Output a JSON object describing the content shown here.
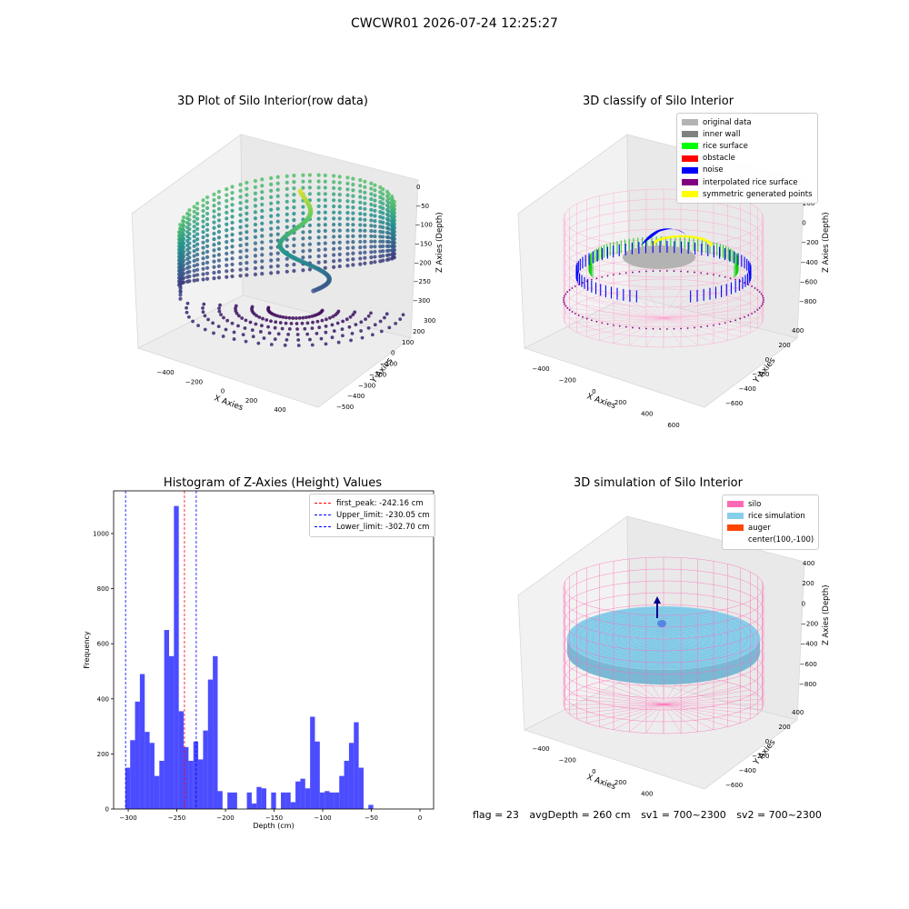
{
  "suptitle": "CWCWR01 2026-07-24 12:25:27",
  "panel_raw": {
    "title": "3D Plot of Silo Interior(row data)",
    "x_label": "X Axies",
    "y_label": "Y Axies",
    "z_label": "Z Axies (Depth)",
    "x_ticks": [
      "−400",
      "−200",
      "0",
      "200",
      "400"
    ],
    "y_ticks": [
      "300",
      "200",
      "100",
      "0",
      "−100",
      "−200",
      "−300",
      "−400",
      "−500"
    ],
    "z_ticks": [
      "0",
      "−50",
      "−100",
      "−150",
      "−200",
      "−250",
      "−300"
    ]
  },
  "panel_classify": {
    "title": "3D classify of Silo Interior",
    "x_label": "X Axies",
    "y_label": "Y Axies",
    "z_label": "Z Axies (Depth)",
    "x_ticks": [
      "−400",
      "−200",
      "0",
      "200",
      "400",
      "600"
    ],
    "y_ticks": [
      "400",
      "200",
      "0",
      "−200",
      "−400",
      "−600"
    ],
    "z_ticks": [
      "200",
      "0",
      "−200",
      "−400",
      "−600",
      "−800"
    ],
    "legend": [
      {
        "label": "original data",
        "color": "#b3b3b3"
      },
      {
        "label": "inner wall",
        "color": "#808080"
      },
      {
        "label": "rice surface",
        "color": "#00ff00"
      },
      {
        "label": "obstacle",
        "color": "#ff0000"
      },
      {
        "label": "noise",
        "color": "#0000ff"
      },
      {
        "label": "interpolated rice surface",
        "color": "#800080"
      },
      {
        "label": "symmetric generated points",
        "color": "#ffff00"
      }
    ]
  },
  "panel_sim": {
    "title": "3D simulation of Silo Interior",
    "x_label": "X Axies",
    "y_label": "Y Axies",
    "z_label": "Z Axies (Depth)",
    "x_ticks": [
      "−400",
      "−200",
      "0",
      "200",
      "400",
      "600"
    ],
    "y_ticks": [
      "400",
      "200",
      "0",
      "−200",
      "−400",
      "−600"
    ],
    "z_ticks": [
      "400",
      "200",
      "0",
      "−200",
      "−400",
      "−600",
      "−800"
    ],
    "legend": [
      {
        "label": "silo",
        "color": "#ff69b4"
      },
      {
        "label": "rice simulation",
        "color": "#87ceeb"
      },
      {
        "label": "auger",
        "color": "#ff4500"
      },
      {
        "label": "center(100,-100)",
        "color": ""
      }
    ]
  },
  "chart_data": {
    "type": "bar",
    "title": "Histogram of Z-Axies (Height) Values",
    "xlabel": "Depth (cm)",
    "ylabel": "Frequency",
    "xlim": [
      -315,
      14
    ],
    "ylim": [
      0,
      1155
    ],
    "x_ticks": [
      -300,
      -250,
      -200,
      -150,
      -100,
      -50,
      0
    ],
    "x_tick_labels": [
      "−300",
      "−250",
      "−200",
      "−150",
      "−100",
      "−50",
      "0"
    ],
    "y_ticks": [
      0,
      200,
      400,
      600,
      800,
      1000
    ],
    "y_tick_labels": [
      "0",
      "200",
      "400",
      "600",
      "800",
      "1000"
    ],
    "bin_width": 5,
    "bins": [
      {
        "x0": -303,
        "v": 150
      },
      {
        "x0": -298,
        "v": 250
      },
      {
        "x0": -293,
        "v": 390
      },
      {
        "x0": -288,
        "v": 490
      },
      {
        "x0": -283,
        "v": 280
      },
      {
        "x0": -278,
        "v": 240
      },
      {
        "x0": -273,
        "v": 120
      },
      {
        "x0": -268,
        "v": 175
      },
      {
        "x0": -263,
        "v": 650
      },
      {
        "x0": -258,
        "v": 555
      },
      {
        "x0": -253,
        "v": 1100
      },
      {
        "x0": -248,
        "v": 355
      },
      {
        "x0": -243,
        "v": 225
      },
      {
        "x0": -238,
        "v": 175
      },
      {
        "x0": -233,
        "v": 245
      },
      {
        "x0": -228,
        "v": 180
      },
      {
        "x0": -223,
        "v": 285
      },
      {
        "x0": -218,
        "v": 470
      },
      {
        "x0": -213,
        "v": 555
      },
      {
        "x0": -208,
        "v": 65
      },
      {
        "x0": -198,
        "v": 60
      },
      {
        "x0": -193,
        "v": 60
      },
      {
        "x0": -178,
        "v": 60
      },
      {
        "x0": -173,
        "v": 20
      },
      {
        "x0": -168,
        "v": 80
      },
      {
        "x0": -163,
        "v": 75
      },
      {
        "x0": -153,
        "v": 60
      },
      {
        "x0": -143,
        "v": 60
      },
      {
        "x0": -138,
        "v": 60
      },
      {
        "x0": -133,
        "v": 25
      },
      {
        "x0": -128,
        "v": 100
      },
      {
        "x0": -123,
        "v": 110
      },
      {
        "x0": -118,
        "v": 75
      },
      {
        "x0": -113,
        "v": 335
      },
      {
        "x0": -108,
        "v": 245
      },
      {
        "x0": -103,
        "v": 60
      },
      {
        "x0": -98,
        "v": 65
      },
      {
        "x0": -93,
        "v": 60
      },
      {
        "x0": -88,
        "v": 60
      },
      {
        "x0": -83,
        "v": 120
      },
      {
        "x0": -78,
        "v": 175
      },
      {
        "x0": -73,
        "v": 240
      },
      {
        "x0": -68,
        "v": 315
      },
      {
        "x0": -63,
        "v": 150
      },
      {
        "x0": -53,
        "v": 15
      }
    ],
    "bar_color": "#0000ff",
    "bar_opacity": 0.7,
    "reference_lines": [
      {
        "label": "first_peak: -242.16 cm",
        "x": -242.16,
        "color": "#ff0000"
      },
      {
        "label": "Upper_limit: -230.05 cm",
        "x": -230.05,
        "color": "#0000ff"
      },
      {
        "label": "Lower_limit: -302.70 cm",
        "x": -302.7,
        "color": "#0000ff"
      }
    ],
    "legend_position": "top-right"
  },
  "footer": {
    "flag": "flag = 23",
    "avg_depth": "avgDepth = 260 cm",
    "sv1": "sv1 = 700~2300",
    "sv2": "sv2 = 700~2300"
  }
}
